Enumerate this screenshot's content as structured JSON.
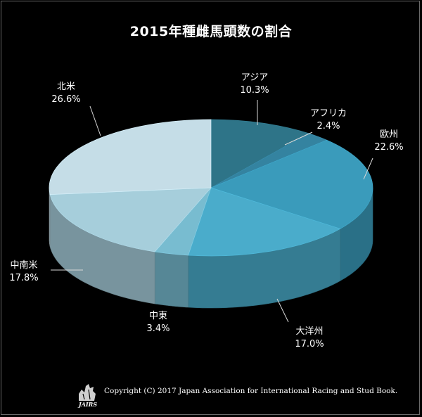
{
  "title": "2015年種雌馬頭数の割合",
  "chart_data": {
    "type": "pie",
    "title": "2015年種雌馬頭数の割合",
    "slices": [
      {
        "label": "アジア",
        "value": 10.3,
        "value_label": "10.3%",
        "color": "#2e7488"
      },
      {
        "label": "アフリカ",
        "value": 2.4,
        "value_label": "2.4%",
        "color": "#3483a0"
      },
      {
        "label": "欧州",
        "value": 22.6,
        "value_label": "22.6%",
        "color": "#3a9bbb"
      },
      {
        "label": "大洋州",
        "value": 17.0,
        "value_label": "17.0%",
        "color": "#4aaccb"
      },
      {
        "label": "中東",
        "value": 3.4,
        "value_label": "3.4%",
        "color": "#78bcd0"
      },
      {
        "label": "中南米",
        "value": 17.8,
        "value_label": "17.8%",
        "color": "#a6cedb"
      },
      {
        "label": "北米",
        "value": 26.6,
        "value_label": "26.6%",
        "color": "#c5dde7"
      }
    ],
    "style": "3d",
    "legend": "none"
  },
  "footer": {
    "copyright": "Copyright (C) 2017 Japan Association for International Racing and Stud Book.",
    "logo_text": "JAIRS"
  }
}
